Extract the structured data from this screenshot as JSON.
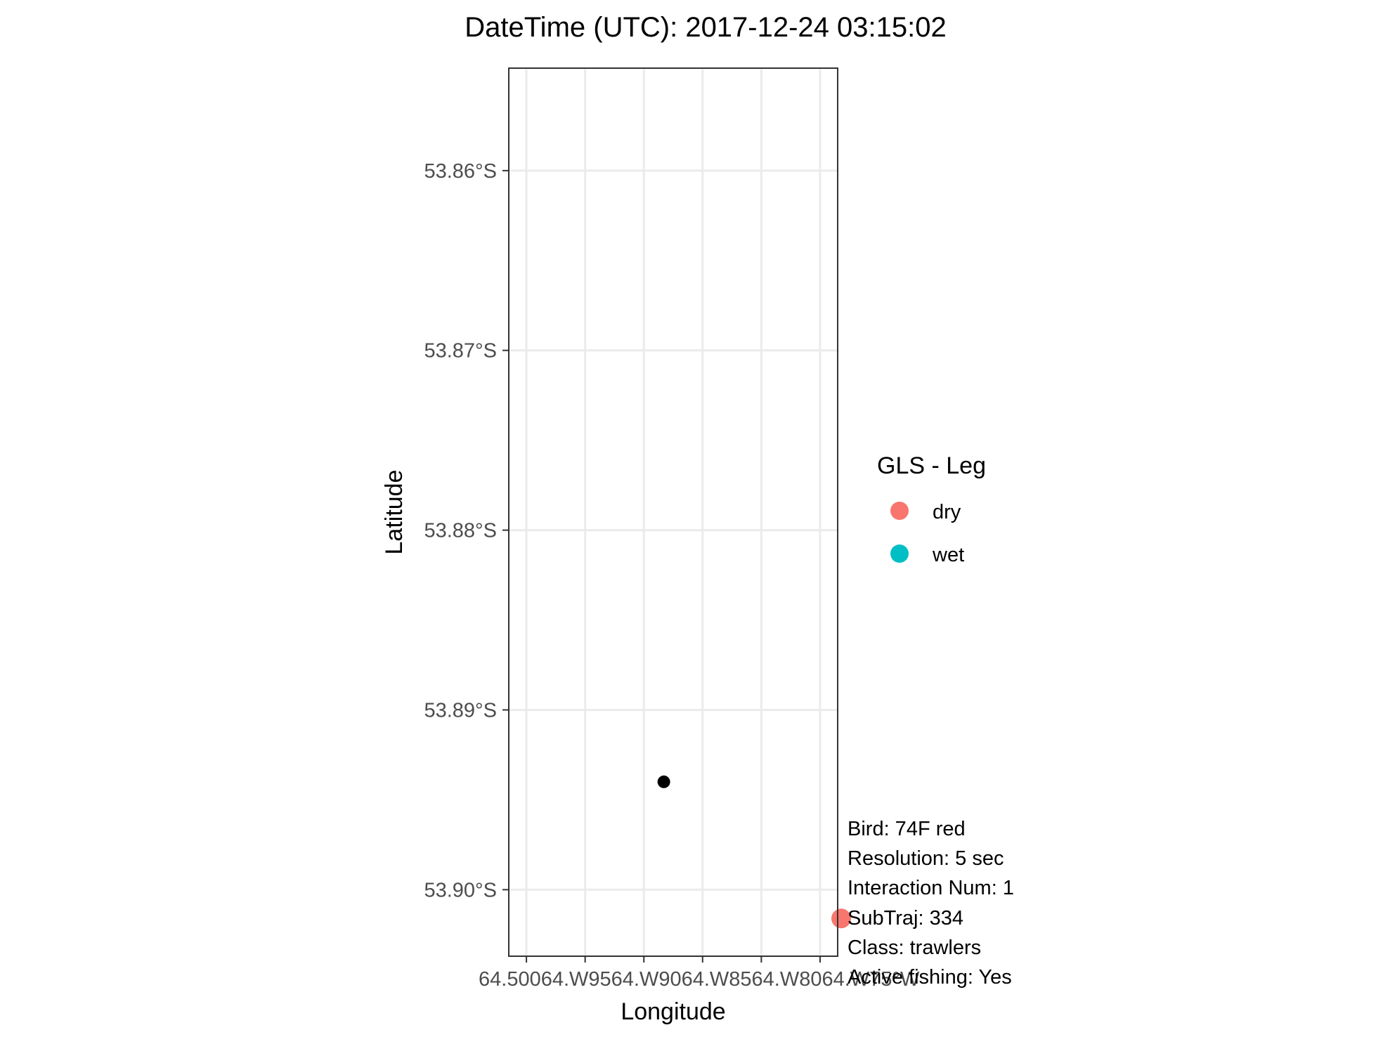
{
  "title": "DateTime (UTC): 2017-12-24 03:15:02",
  "chart_data": {
    "type": "scatter",
    "title": "DateTime (UTC): 2017-12-24 03:15:02",
    "xlabel": "Longitude",
    "ylabel": "Latitude",
    "grid": true,
    "xlim": [
      -64.5015,
      -64.4735
    ],
    "ylim": [
      -53.9037,
      -53.8543
    ],
    "x_ticks": [
      {
        "value": -64.5,
        "label": "64.500°W"
      },
      {
        "value": -64.495,
        "label": "64.495°W"
      },
      {
        "value": -64.49,
        "label": "64.490°W"
      },
      {
        "value": -64.485,
        "label": "64.485°W"
      },
      {
        "value": -64.48,
        "label": "64.480°W"
      },
      {
        "value": -64.475,
        "label": "64.475°W"
      }
    ],
    "x_tick_label_text": "64.50064.W9564.W9064.W8564.W8064.W75°W",
    "y_ticks": [
      {
        "value": -53.86,
        "label": "53.86°S"
      },
      {
        "value": -53.87,
        "label": "53.87°S"
      },
      {
        "value": -53.88,
        "label": "53.88°S"
      },
      {
        "value": -53.89,
        "label": "53.89°S"
      },
      {
        "value": -53.9,
        "label": "53.90°S"
      }
    ],
    "series": [
      {
        "points": [
          {
            "x": -64.4883,
            "y": -53.894
          }
        ],
        "color": "#000000",
        "shape": "small-dot"
      },
      {
        "points": [
          {
            "x": -64.4732,
            "y": -53.9016
          }
        ],
        "color": "#F8766D",
        "shape": "dot"
      }
    ],
    "legend": {
      "title": "GLS - Leg",
      "placement": "right",
      "items": [
        {
          "label": "dry",
          "color": "#F8766D"
        },
        {
          "label": "wet",
          "color": "#00BFC4"
        }
      ]
    },
    "annotations": [
      "Bird: 74F red",
      "Resolution: 5 sec",
      "Interaction Num: 1",
      "SubTraj: 334",
      "Class: trawlers",
      "Active fishing: Yes"
    ]
  }
}
